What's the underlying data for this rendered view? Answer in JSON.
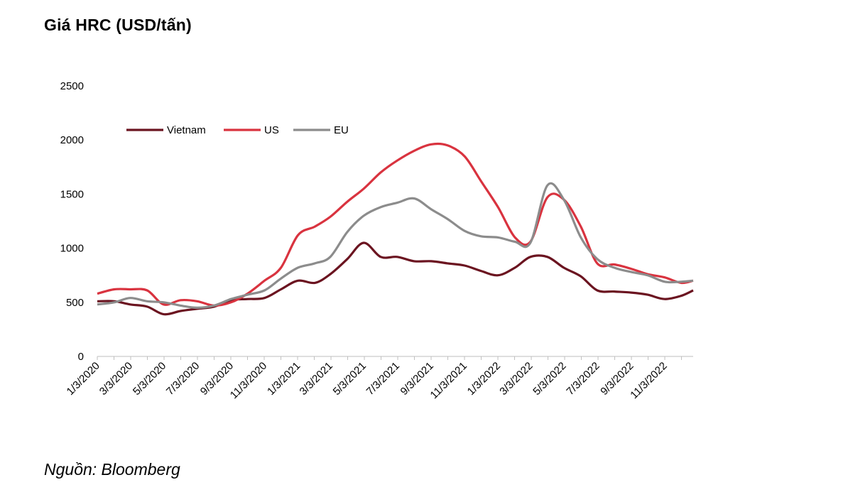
{
  "title": "Giá HRC (USD/tấn)",
  "source": "Nguồn: Bloomberg",
  "chart_data": {
    "type": "line",
    "title": "Giá HRC (USD/tấn)",
    "xlabel": "",
    "ylabel": "",
    "ylim": [
      0,
      2500
    ],
    "yticks": [
      0,
      500,
      1000,
      1500,
      2000,
      2500
    ],
    "xticks": [
      "1/3/2020",
      "3/3/2020",
      "5/3/2020",
      "7/3/2020",
      "9/3/2020",
      "11/3/2020",
      "1/3/2021",
      "3/3/2021",
      "5/3/2021",
      "7/3/2021",
      "9/3/2021",
      "11/3/2021",
      "1/3/2022",
      "3/3/2022",
      "5/3/2022",
      "7/3/2022",
      "9/3/2022",
      "11/3/2022"
    ],
    "x": [
      "2020-01-03",
      "2020-02-03",
      "2020-03-03",
      "2020-04-03",
      "2020-05-03",
      "2020-06-03",
      "2020-07-03",
      "2020-08-03",
      "2020-09-03",
      "2020-10-03",
      "2020-11-03",
      "2020-12-03",
      "2021-01-03",
      "2021-02-03",
      "2021-03-03",
      "2021-04-03",
      "2021-05-03",
      "2021-06-03",
      "2021-07-03",
      "2021-08-03",
      "2021-09-03",
      "2021-10-03",
      "2021-11-03",
      "2021-12-03",
      "2022-01-03",
      "2022-02-03",
      "2022-03-03",
      "2022-04-03",
      "2022-05-03",
      "2022-06-03",
      "2022-07-03",
      "2022-08-03",
      "2022-09-03",
      "2022-10-03",
      "2022-11-03",
      "2022-12-03",
      "2022-12-25"
    ],
    "series": [
      {
        "name": "Vietnam",
        "color": "#6b1420",
        "values": [
          510,
          510,
          480,
          460,
          390,
          420,
          440,
          460,
          520,
          530,
          540,
          620,
          700,
          680,
          760,
          900,
          1050,
          920,
          920,
          880,
          880,
          860,
          840,
          790,
          750,
          820,
          920,
          920,
          820,
          740,
          610,
          600,
          590,
          570,
          530,
          560,
          610
        ]
      },
      {
        "name": "US",
        "color": "#d9333f",
        "values": [
          580,
          620,
          620,
          610,
          480,
          520,
          510,
          470,
          500,
          580,
          700,
          820,
          1120,
          1200,
          1290,
          1430,
          1550,
          1700,
          1810,
          1900,
          1960,
          1950,
          1850,
          1620,
          1380,
          1100,
          1060,
          1470,
          1450,
          1200,
          860,
          850,
          810,
          760,
          730,
          680,
          700
        ]
      },
      {
        "name": "EU",
        "color": "#8c8c8c",
        "values": [
          480,
          500,
          540,
          510,
          500,
          470,
          450,
          470,
          530,
          570,
          610,
          720,
          820,
          860,
          920,
          1150,
          1300,
          1380,
          1420,
          1460,
          1360,
          1270,
          1160,
          1110,
          1100,
          1060,
          1050,
          1580,
          1450,
          1100,
          900,
          820,
          780,
          750,
          690,
          690,
          700
        ]
      }
    ],
    "legend_position": "top-left",
    "grid": false
  }
}
